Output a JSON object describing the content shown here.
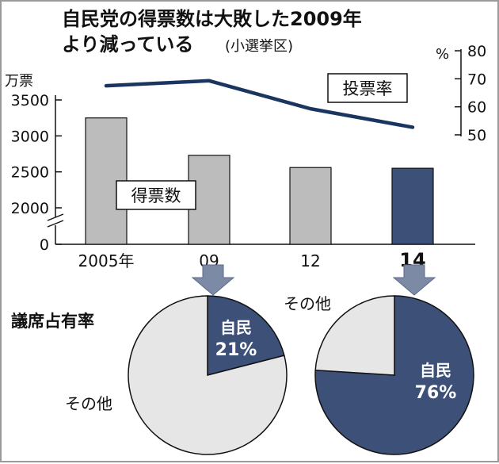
{
  "title": {
    "line1": "自民党の得票数は大敗した2009年",
    "line2": "より減っている",
    "note": "(小選挙区)"
  },
  "chart_data": [
    {
      "type": "bar",
      "categories": [
        "2005年",
        "09",
        "12",
        "14"
      ],
      "highlight_category": "14",
      "series": [
        {
          "name": "得票数",
          "values": [
            3250,
            2730,
            2560,
            2550
          ]
        }
      ],
      "ylabel": "万票",
      "yticks": [
        3500,
        3000,
        2500,
        2000,
        0
      ],
      "ylim": [
        0,
        3500
      ],
      "axis_break": true,
      "bar_color": "#bcbcbc",
      "highlight_color": "#3c5078"
    },
    {
      "type": "line",
      "categories": [
        "2005年",
        "09",
        "12",
        "14"
      ],
      "series": [
        {
          "name": "投票率",
          "values": [
            67.5,
            69.3,
            59.3,
            52.7
          ]
        }
      ],
      "ylabel": "%",
      "yticks": [
        80,
        70,
        60,
        50
      ],
      "ylim": [
        50,
        80
      ],
      "line_color": "#1a3560"
    },
    {
      "type": "pie",
      "year": "09",
      "slices": [
        {
          "label": "自民",
          "value": 21,
          "value_label": "21%",
          "color": "#3c5078"
        },
        {
          "label": "その他",
          "value": 79,
          "value_label": "",
          "color": "#e6e6e6"
        }
      ]
    },
    {
      "type": "pie",
      "year": "14",
      "slices": [
        {
          "label": "自民",
          "value": 76,
          "value_label": "76%",
          "color": "#3c5078"
        },
        {
          "label": "その他",
          "value": 24,
          "value_label": "",
          "color": "#e6e6e6"
        }
      ]
    }
  ],
  "pie_section_title": "議席占有率",
  "colors": {
    "accent": "#3c5078",
    "line": "#1a3560",
    "bar": "#bcbcbc",
    "pie_other": "#e6e6e6"
  }
}
